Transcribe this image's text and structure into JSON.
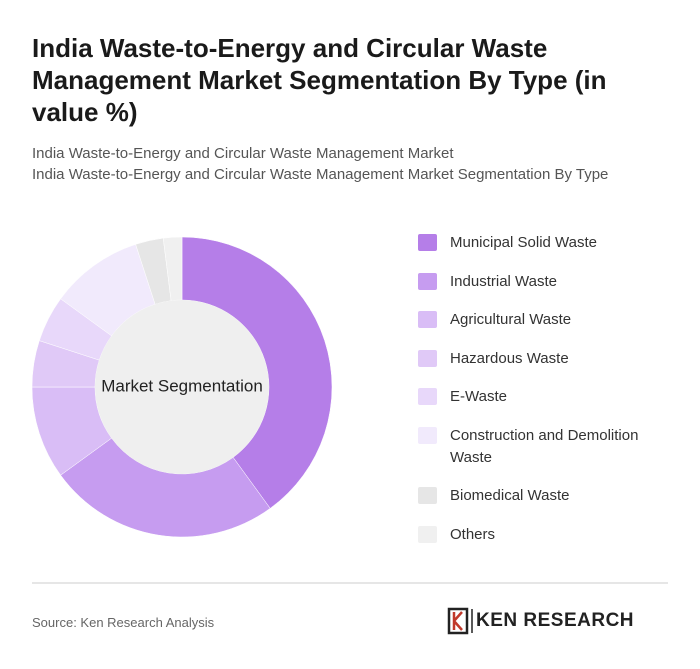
{
  "chart_data": {
    "type": "donut",
    "title": "India Waste-to-Energy and Circular Waste Management Market Segmentation By Type (in value %)",
    "subtitle": [
      "India Waste-to-Energy and Circular Waste Management Market",
      "India Waste-to-Energy and Circular Waste Management Market Segmentation By Type"
    ],
    "center_label": "Market Segmentation",
    "categories": [
      "Municipal Solid Waste",
      "Industrial Waste",
      "Agricultural Waste",
      "Hazardous Waste",
      "E-Waste",
      "Construction and Demolition Waste",
      "Biomedical Waste",
      "Others"
    ],
    "values": [
      40,
      25,
      10,
      5,
      5,
      10,
      3,
      2
    ],
    "colors": [
      "#b57ee8",
      "#c69cf0",
      "#d9bdf6",
      "#e0c9f7",
      "#e8d8fa",
      "#f1eafc",
      "#e6e6e6",
      "#f0f0f0"
    ],
    "source": "Source: Ken Research Analysis",
    "logo": "KEN RESEARCH"
  }
}
